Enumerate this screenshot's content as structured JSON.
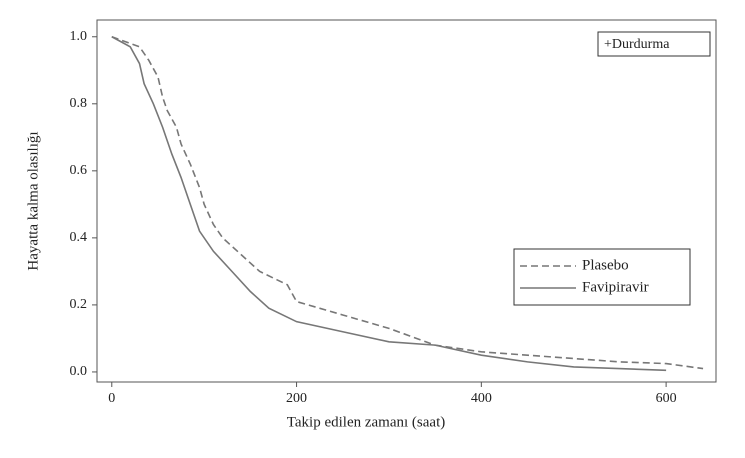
{
  "chart_data": {
    "type": "line",
    "x_label": "Takip edilen zamanı (saat)",
    "y_label": "Hayatta kalma olasılığı",
    "annotation": "+Durdurma",
    "legend": "center right",
    "xlim": [
      -16,
      654
    ],
    "xticks": [
      0,
      200,
      400,
      600
    ],
    "ylim": [
      -0.03,
      1.05
    ],
    "yticks": [
      {
        "value": 0,
        "label": "0.0"
      },
      0.2,
      0.4,
      0.6,
      0.8,
      {
        "value": 1,
        "label": "1.0"
      }
    ],
    "series": [
      {
        "name": "Plasebo",
        "color": "#777777",
        "dashed": true,
        "x": [
          0,
          20,
          30,
          40,
          50,
          55,
          60,
          70,
          75,
          85,
          95,
          100,
          110,
          120,
          140,
          160,
          190,
          200,
          250,
          300,
          350,
          400,
          450,
          500,
          550,
          600,
          640
        ],
        "values": [
          1.0,
          0.98,
          0.97,
          0.93,
          0.88,
          0.82,
          0.78,
          0.73,
          0.68,
          0.62,
          0.55,
          0.5,
          0.44,
          0.4,
          0.35,
          0.3,
          0.26,
          0.21,
          0.17,
          0.13,
          0.08,
          0.06,
          0.05,
          0.04,
          0.03,
          0.025,
          0.01
        ]
      },
      {
        "name": "Favipiravir",
        "color": "#777777",
        "dashed": false,
        "x": [
          0,
          20,
          30,
          35,
          45,
          55,
          65,
          75,
          85,
          95,
          110,
          130,
          150,
          170,
          200,
          250,
          300,
          350,
          400,
          450,
          500,
          600
        ],
        "values": [
          1.0,
          0.97,
          0.92,
          0.86,
          0.8,
          0.73,
          0.65,
          0.58,
          0.5,
          0.42,
          0.36,
          0.3,
          0.24,
          0.19,
          0.15,
          0.12,
          0.09,
          0.08,
          0.05,
          0.03,
          0.015,
          0.005
        ]
      }
    ]
  }
}
